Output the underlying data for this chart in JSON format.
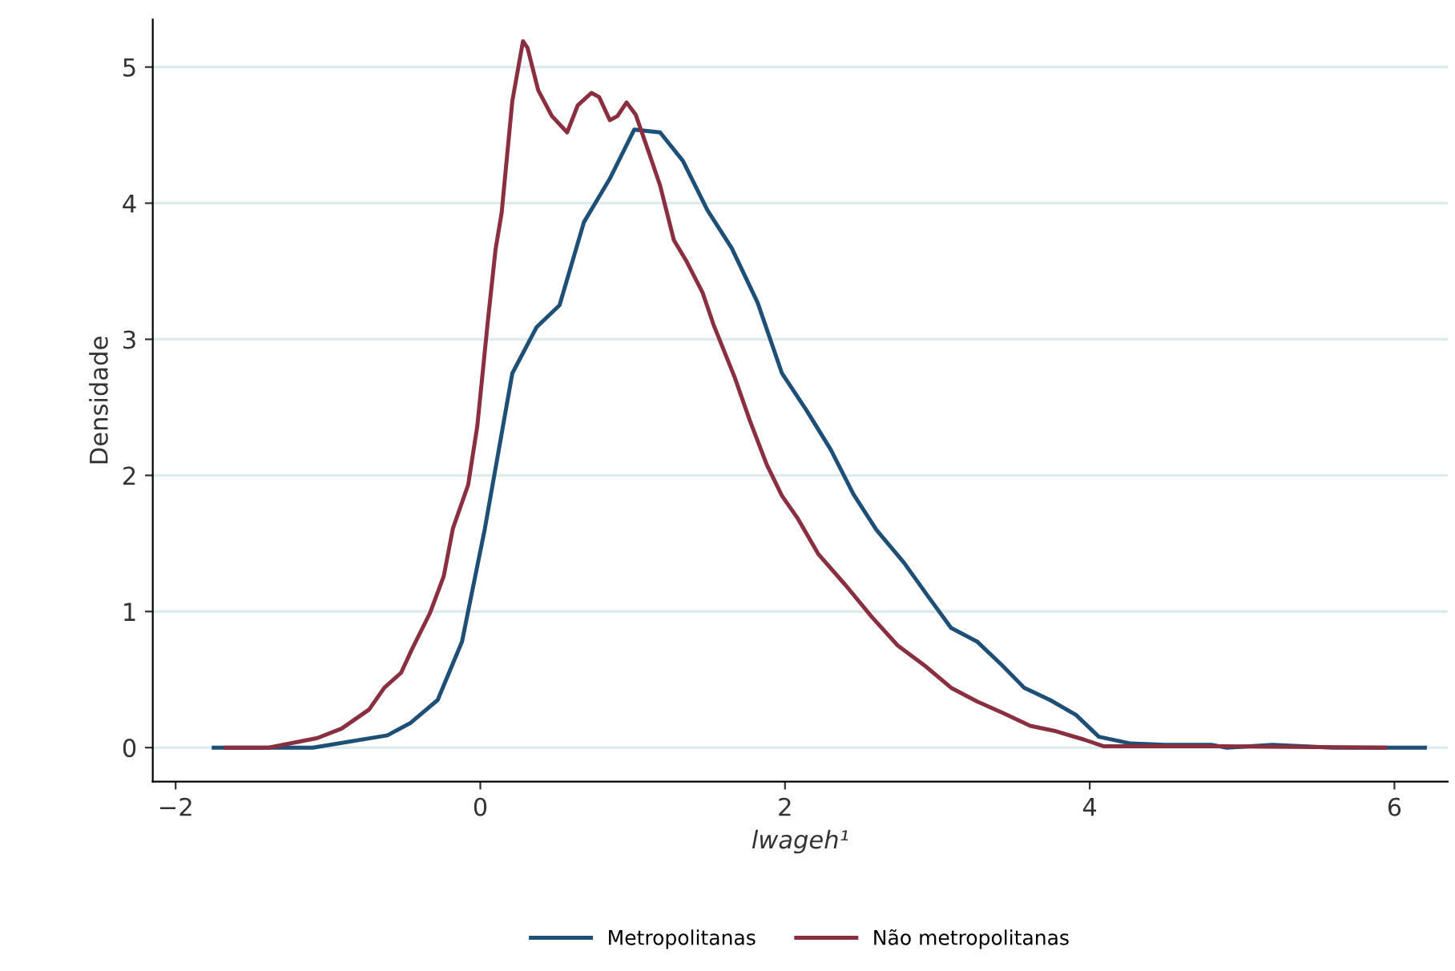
{
  "chart_data": {
    "type": "line",
    "xlabel": "lwageh¹",
    "ylabel": "Densidade",
    "xlim": [
      -2.15,
      6.35
    ],
    "ylim": [
      -0.25,
      5.35
    ],
    "xticks": [
      {
        "value": -2,
        "label": "−2"
      },
      0,
      2,
      4,
      6
    ],
    "yticks": [
      0,
      1,
      2,
      3,
      4,
      5
    ],
    "grid": "y",
    "legend": "bottom",
    "marker": "none",
    "line_style": "solid",
    "series": [
      {
        "name": "Metropolitanas",
        "color": "#1d4f77",
        "x": [
          -1.75,
          -1.1,
          -0.61,
          -0.46,
          -0.28,
          -0.12,
          0.03,
          0.21,
          0.37,
          0.52,
          0.68,
          0.85,
          1.01,
          1.18,
          1.33,
          1.49,
          1.65,
          1.82,
          1.98,
          2.14,
          2.3,
          2.45,
          2.6,
          2.78,
          2.94,
          3.09,
          3.26,
          3.42,
          3.57,
          3.74,
          3.91,
          4.06,
          4.27,
          4.5,
          4.8,
          4.9,
          5.2,
          5.6,
          6.2
        ],
        "values": [
          0,
          0,
          0.09,
          0.18,
          0.35,
          0.78,
          1.61,
          2.75,
          3.09,
          3.25,
          3.86,
          4.18,
          4.54,
          4.52,
          4.31,
          3.95,
          3.67,
          3.27,
          2.75,
          2.48,
          2.19,
          1.86,
          1.6,
          1.36,
          1.11,
          0.88,
          0.78,
          0.61,
          0.44,
          0.35,
          0.24,
          0.08,
          0.03,
          0.02,
          0.02,
          0,
          0.02,
          0,
          0
        ]
      },
      {
        "name": "Não metropolitanas",
        "color": "#8a2f40",
        "x": [
          -1.67,
          -1.39,
          -1.07,
          -0.91,
          -0.73,
          -0.63,
          -0.52,
          -0.45,
          -0.33,
          -0.24,
          -0.18,
          -0.08,
          -0.02,
          0.05,
          0.1,
          0.14,
          0.21,
          0.28,
          0.31,
          0.38,
          0.47,
          0.57,
          0.64,
          0.73,
          0.78,
          0.85,
          0.9,
          0.96,
          1.02,
          1.11,
          1.18,
          1.27,
          1.35,
          1.46,
          1.53,
          1.67,
          1.77,
          1.88,
          1.98,
          2.08,
          2.22,
          2.4,
          2.57,
          2.74,
          2.92,
          3.09,
          3.26,
          3.44,
          3.61,
          3.78,
          3.96,
          4.09,
          4.66,
          4.82,
          5.94
        ],
        "values": [
          0,
          0,
          0.07,
          0.14,
          0.28,
          0.44,
          0.55,
          0.72,
          0.99,
          1.26,
          1.61,
          1.93,
          2.36,
          3.14,
          3.66,
          3.93,
          4.75,
          5.19,
          5.14,
          4.83,
          4.64,
          4.52,
          4.72,
          4.81,
          4.78,
          4.61,
          4.64,
          4.74,
          4.65,
          4.36,
          4.13,
          3.73,
          3.58,
          3.34,
          3.11,
          2.72,
          2.4,
          2.08,
          1.85,
          1.69,
          1.42,
          1.19,
          0.96,
          0.75,
          0.6,
          0.44,
          0.34,
          0.25,
          0.16,
          0.12,
          0.06,
          0.01,
          0.01,
          0.01,
          0
        ]
      }
    ]
  }
}
